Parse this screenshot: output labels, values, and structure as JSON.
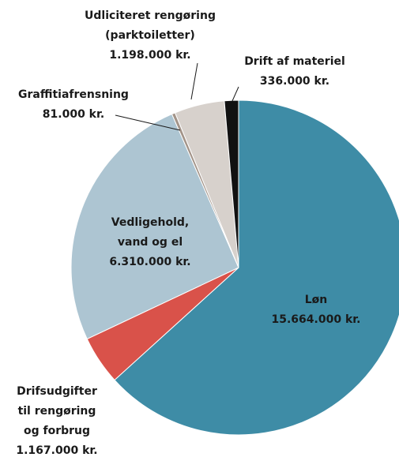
{
  "chart_data": {
    "type": "pie",
    "categories": [
      [
        "Løn"
      ],
      [
        "Drifsudgifter",
        "til rengøring",
        "og forbrug"
      ],
      [
        "Vedligehold,",
        "vand og el"
      ],
      [
        "Graffitiafrensning"
      ],
      [
        "Udliciteret rengøring",
        "(parktoiletter)"
      ],
      [
        "Drift af materiel"
      ]
    ],
    "values": [
      15664000,
      1167000,
      6310000,
      81000,
      1198000,
      336000
    ],
    "value_labels": [
      "15.664.000 kr.",
      "1.167.000 kr.",
      "6.310.000 kr.",
      "81.000 kr.",
      "1.198.000 kr.",
      "336.000 kr."
    ],
    "colors": [
      "#3e8ca6",
      "#d9524a",
      "#adc5d2",
      "#a39489",
      "#d7d1cc",
      "#111111"
    ]
  }
}
